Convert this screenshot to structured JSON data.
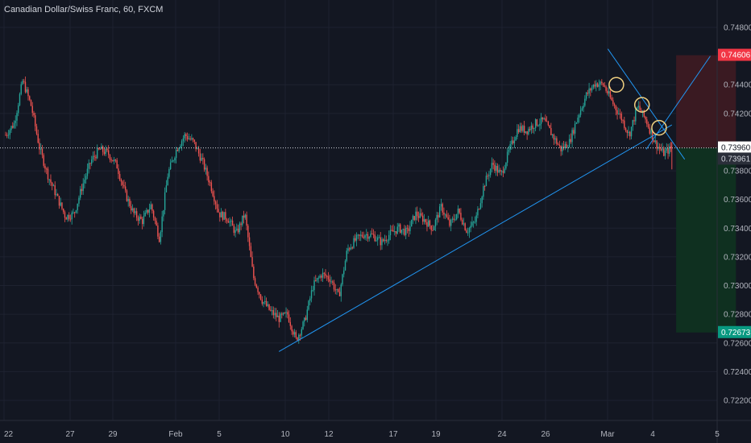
{
  "header": {
    "title": "Canadian Dollar/Swiss Franc, 60, FXCM"
  },
  "colors": {
    "background": "#131722",
    "grid": "#1e2230",
    "axis_text": "#b2b5be",
    "candle_up": "#26a69a",
    "candle_down": "#ef5350",
    "trendline": "#2196f3",
    "circle": "#f0d080",
    "stop_zone": "#3a1a22",
    "target_zone": "#0f3020",
    "badge_red": "#f23645",
    "badge_green": "#089981"
  },
  "chart_data": {
    "type": "candlestick",
    "y_ticks": [
      "0.74800",
      "0.74400",
      "0.74200",
      "0.73800",
      "0.73600",
      "0.73400",
      "0.73200",
      "0.73000",
      "0.72800",
      "0.72600",
      "0.72400",
      "0.72200"
    ],
    "x_ticks": [
      "22",
      "27",
      "29",
      "Feb",
      "5",
      "10",
      "12",
      "17",
      "19",
      "24",
      "26",
      "Mar",
      "4",
      "5"
    ],
    "ylim": [
      0.7205,
      0.7495
    ],
    "price_markers": [
      {
        "label": "0.74606",
        "value": 0.74606,
        "kind": "stop"
      },
      {
        "label": "0.73960",
        "value": 0.7396,
        "kind": "current"
      },
      {
        "label": "0.73961",
        "value": 0.73961,
        "kind": "last"
      },
      {
        "label": "0.72673",
        "value": 0.72673,
        "kind": "target"
      }
    ],
    "close_path": [
      [
        0,
        0.7405
      ],
      [
        2,
        0.7413
      ],
      [
        4,
        0.7443
      ],
      [
        6,
        0.7425
      ],
      [
        8,
        0.7395
      ],
      [
        10,
        0.7376
      ],
      [
        12,
        0.7362
      ],
      [
        14,
        0.7348
      ],
      [
        16,
        0.735
      ],
      [
        18,
        0.737
      ],
      [
        20,
        0.7387
      ],
      [
        22,
        0.7395
      ],
      [
        24,
        0.7392
      ],
      [
        26,
        0.7384
      ],
      [
        28,
        0.7364
      ],
      [
        30,
        0.735
      ],
      [
        32,
        0.7345
      ],
      [
        34,
        0.7356
      ],
      [
        36,
        0.7333
      ],
      [
        38,
        0.7378
      ],
      [
        40,
        0.7395
      ],
      [
        42,
        0.7405
      ],
      [
        44,
        0.74
      ],
      [
        46,
        0.7387
      ],
      [
        48,
        0.737
      ],
      [
        50,
        0.735
      ],
      [
        52,
        0.7347
      ],
      [
        54,
        0.7336
      ],
      [
        56,
        0.735
      ],
      [
        58,
        0.7306
      ],
      [
        60,
        0.729
      ],
      [
        62,
        0.7282
      ],
      [
        64,
        0.7277
      ],
      [
        66,
        0.728
      ],
      [
        68,
        0.7262
      ],
      [
        70,
        0.7275
      ],
      [
        72,
        0.73
      ],
      [
        74,
        0.7308
      ],
      [
        76,
        0.7305
      ],
      [
        78,
        0.7292
      ],
      [
        80,
        0.7325
      ],
      [
        82,
        0.7332
      ],
      [
        84,
        0.7336
      ],
      [
        86,
        0.7335
      ],
      [
        88,
        0.733
      ],
      [
        90,
        0.7336
      ],
      [
        92,
        0.734
      ],
      [
        94,
        0.7337
      ],
      [
        96,
        0.735
      ],
      [
        98,
        0.7346
      ],
      [
        100,
        0.734
      ],
      [
        102,
        0.7355
      ],
      [
        104,
        0.7342
      ],
      [
        106,
        0.7352
      ],
      [
        108,
        0.7338
      ],
      [
        110,
        0.7345
      ],
      [
        112,
        0.737
      ],
      [
        114,
        0.7385
      ],
      [
        116,
        0.7377
      ],
      [
        118,
        0.7395
      ],
      [
        120,
        0.741
      ],
      [
        122,
        0.7408
      ],
      [
        124,
        0.7413
      ],
      [
        126,
        0.7415
      ],
      [
        128,
        0.7405
      ],
      [
        130,
        0.7395
      ],
      [
        132,
        0.74
      ],
      [
        134,
        0.7418
      ],
      [
        136,
        0.7433
      ],
      [
        138,
        0.7441
      ],
      [
        140,
        0.744
      ],
      [
        142,
        0.7428
      ],
      [
        144,
        0.7418
      ],
      [
        146,
        0.7405
      ],
      [
        148,
        0.7425
      ],
      [
        150,
        0.7415
      ],
      [
        152,
        0.74
      ],
      [
        154,
        0.7392
      ],
      [
        156,
        0.7396
      ]
    ],
    "annotations": {
      "support_trendline": {
        "from": [
          64,
          0.7254
        ],
        "to": [
          156,
          0.7412
        ]
      },
      "resistance_line": {
        "from": [
          141,
          0.7465
        ],
        "to": [
          159,
          0.7388
        ]
      },
      "breakout_line": {
        "from": [
          150,
          0.7395
        ],
        "to": [
          165,
          0.746
        ]
      },
      "circles": [
        [
          143,
          0.744
        ],
        [
          149,
          0.7426
        ],
        [
          153,
          0.741
        ]
      ],
      "position": {
        "entry": 0.7396,
        "stop": 0.74606,
        "target": 0.72673,
        "x_from": 157,
        "x_to": 171
      }
    }
  }
}
